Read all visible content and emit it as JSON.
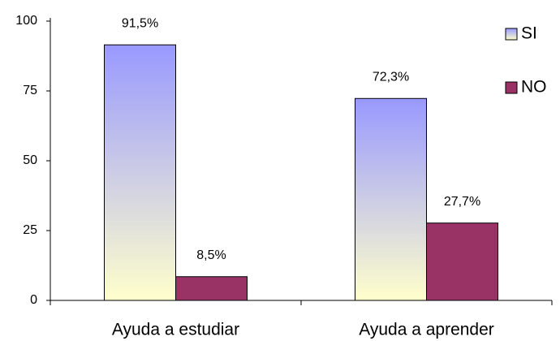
{
  "chart_data": {
    "type": "bar",
    "categories": [
      "Ayuda a estudiar",
      "Ayuda a aprender"
    ],
    "series": [
      {
        "name": "SI",
        "color": "#9999ff",
        "values": [
          91.5,
          72.3
        ],
        "value_labels": [
          "91,5%",
          "72,3%"
        ]
      },
      {
        "name": "NO",
        "color": "#993366",
        "values": [
          8.5,
          27.7
        ],
        "value_labels": [
          "8,5%",
          "27,7%"
        ]
      }
    ],
    "ylim": [
      0,
      100
    ],
    "yticks": [
      0,
      25,
      50,
      75,
      100
    ],
    "legend": "right"
  }
}
